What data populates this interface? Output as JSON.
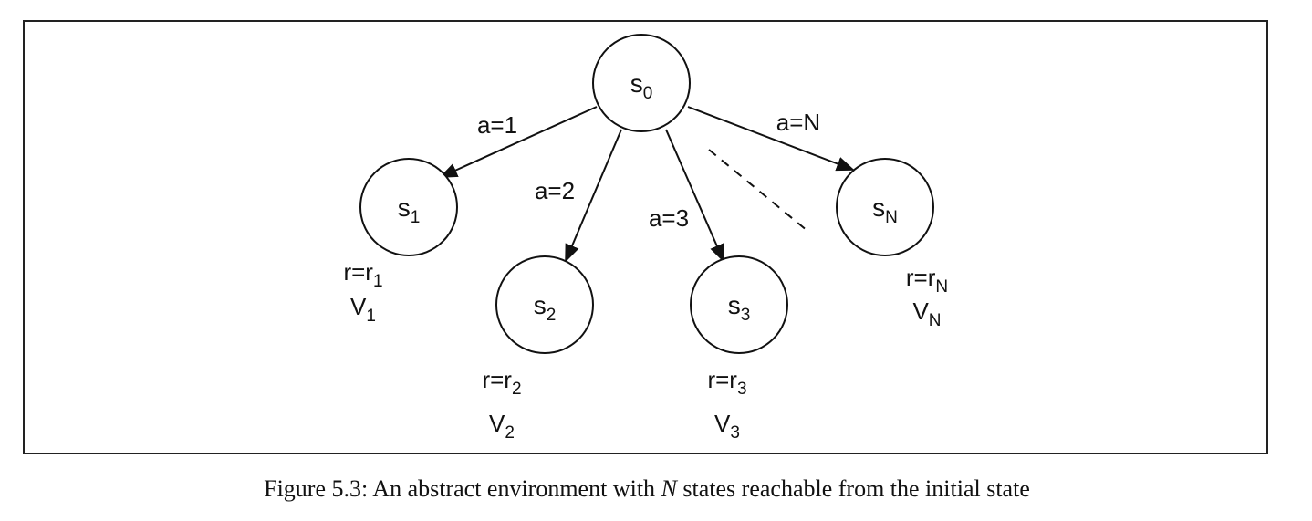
{
  "diagram": {
    "nodes": [
      {
        "id": "s0",
        "base": "s",
        "sub": "0"
      },
      {
        "id": "s1",
        "base": "s",
        "sub": "1"
      },
      {
        "id": "s2",
        "base": "s",
        "sub": "2"
      },
      {
        "id": "s3",
        "base": "s",
        "sub": "3"
      },
      {
        "id": "sN",
        "base": "s",
        "sub": "N"
      }
    ],
    "edges": [
      {
        "from": "s0",
        "to": "s1",
        "label": "a=1"
      },
      {
        "from": "s0",
        "to": "s2",
        "label": "a=2"
      },
      {
        "from": "s0",
        "to": "s3",
        "label": "a=3"
      },
      {
        "from": "s0",
        "to": "sN",
        "label": "a=N"
      }
    ],
    "annotations": [
      {
        "node": "s1",
        "reward_prefix": "r=r",
        "reward_sub": "1",
        "value_base": "V",
        "value_sub": "1"
      },
      {
        "node": "s2",
        "reward_prefix": "r=r",
        "reward_sub": "2",
        "value_base": "V",
        "value_sub": "2"
      },
      {
        "node": "s3",
        "reward_prefix": "r=r",
        "reward_sub": "3",
        "value_base": "V",
        "value_sub": "3"
      },
      {
        "node": "sN",
        "reward_prefix": "r=r",
        "reward_sub": "N",
        "value_base": "V",
        "value_sub": "N"
      }
    ]
  },
  "caption": {
    "prefix": "Figure 5.3: An abstract environment with ",
    "emphasis": "N",
    "suffix": " states reachable from the initial state"
  }
}
